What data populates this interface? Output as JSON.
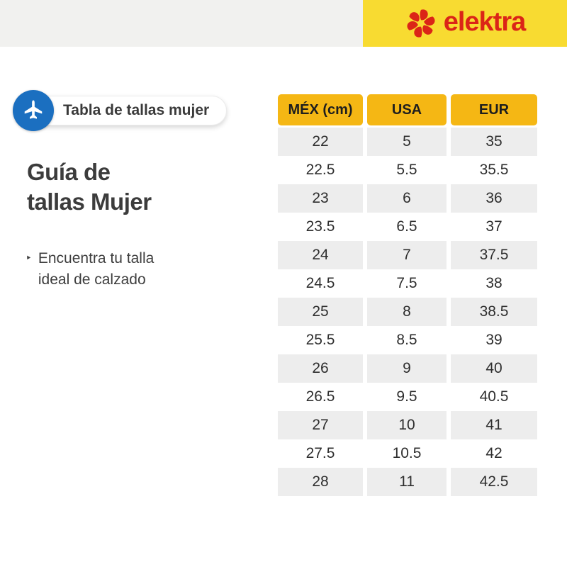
{
  "topbar": {
    "gray_bg": "#F1F1EF",
    "yellow_bg": "#F8DB31"
  },
  "brand": {
    "logo_text": "elektra",
    "logo_red": "#DB2517"
  },
  "badge": {
    "label": "Tabla de tallas mujer",
    "icon": "airplane-icon",
    "circle_blue": "#1B6FC0"
  },
  "heading": {
    "line1": "Guía de",
    "line2": "tallas Mujer"
  },
  "note": {
    "marker": "‣",
    "line1": "Encuentra tu talla",
    "line2": "ideal de calzado"
  },
  "chart_data": {
    "type": "table",
    "title": "Guía de tallas Mujer",
    "columns": [
      "MÉX (cm)",
      "USA",
      "EUR"
    ],
    "rows": [
      [
        22,
        5,
        35
      ],
      [
        22.5,
        5.5,
        35.5
      ],
      [
        23,
        6,
        36
      ],
      [
        23.5,
        6.5,
        37
      ],
      [
        24,
        7,
        37.5
      ],
      [
        24.5,
        7.5,
        38
      ],
      [
        25,
        8,
        38.5
      ],
      [
        25.5,
        8.5,
        39
      ],
      [
        26,
        9,
        40
      ],
      [
        26.5,
        9.5,
        40.5
      ],
      [
        27,
        10,
        41
      ],
      [
        27.5,
        10.5,
        42
      ],
      [
        28,
        11,
        42.5
      ]
    ],
    "layout": {
      "header_bg": "#F5B714",
      "row_alt_bg": "#EDEDED",
      "first_row_shaded": true
    }
  }
}
